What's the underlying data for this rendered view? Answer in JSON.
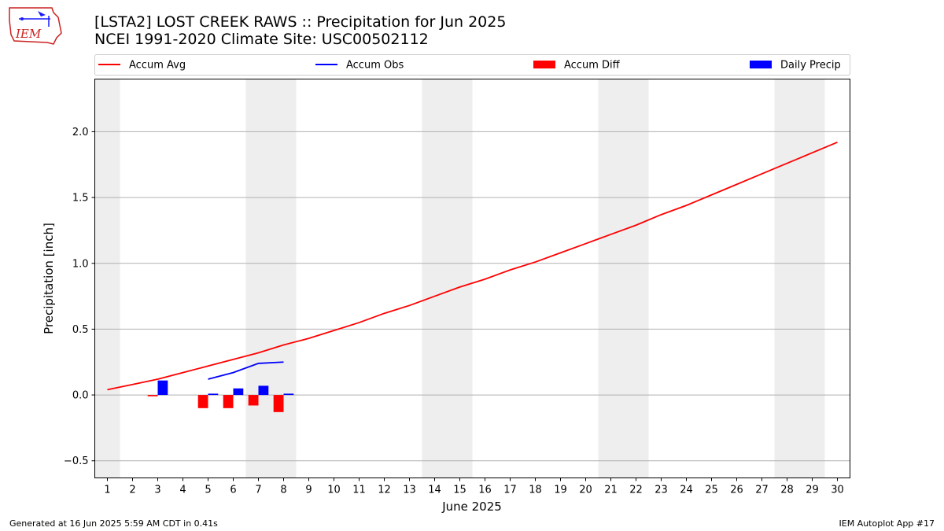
{
  "logo": {
    "text": "IEM"
  },
  "header": {
    "title_line1": "[LSTA2] LOST CREEK RAWS :: Precipitation for Jun 2025",
    "title_line2": "NCEI 1991-2020 Climate Site: USC00502112"
  },
  "footer": {
    "generated": "Generated at 16 Jun 2025 5:59 AM CDT in 0.41s",
    "app": "IEM Autoplot App #17"
  },
  "chart_data": {
    "type": "bar",
    "xlabel": "June 2025",
    "ylabel": "Precipitation [inch]",
    "xlim": [
      0.5,
      30.5
    ],
    "ylim": [
      -0.63,
      2.4
    ],
    "yticks": [
      -0.5,
      0.0,
      0.5,
      1.0,
      1.5,
      2.0
    ],
    "ytick_labels": [
      "−0.5",
      "0.0",
      "0.5",
      "1.0",
      "1.5",
      "2.0"
    ],
    "days": [
      1,
      2,
      3,
      4,
      5,
      6,
      7,
      8,
      9,
      10,
      11,
      12,
      13,
      14,
      15,
      16,
      17,
      18,
      19,
      20,
      21,
      22,
      23,
      24,
      25,
      26,
      27,
      28,
      29,
      30
    ],
    "weekend_days": [
      1,
      7,
      8,
      14,
      15,
      21,
      22,
      28,
      29
    ],
    "grid": "horizontal",
    "legend_position": "top",
    "colors": {
      "avg": "#ff0000",
      "obs": "#0000ff",
      "diff": "#ff0000",
      "daily": "#0000ff",
      "weekend": "#eeeeee",
      "grid": "#b0b0b0"
    },
    "legend": [
      {
        "label": "Accum Avg",
        "kind": "line",
        "color": "#ff0000"
      },
      {
        "label": "Accum Obs",
        "kind": "line",
        "color": "#0000ff"
      },
      {
        "label": "Accum Diff",
        "kind": "bar",
        "color": "#ff0000"
      },
      {
        "label": "Daily Precip",
        "kind": "bar",
        "color": "#0000ff"
      }
    ],
    "series": [
      {
        "name": "Accum Avg",
        "type": "line",
        "x": [
          1,
          2,
          3,
          4,
          5,
          6,
          7,
          8,
          9,
          10,
          11,
          12,
          13,
          14,
          15,
          16,
          17,
          18,
          19,
          20,
          21,
          22,
          23,
          24,
          25,
          26,
          27,
          28,
          29,
          30
        ],
        "values": [
          0.04,
          0.08,
          0.12,
          0.17,
          0.22,
          0.27,
          0.32,
          0.38,
          0.43,
          0.49,
          0.55,
          0.62,
          0.68,
          0.75,
          0.82,
          0.88,
          0.95,
          1.01,
          1.08,
          1.15,
          1.22,
          1.29,
          1.37,
          1.44,
          1.52,
          1.6,
          1.68,
          1.76,
          1.84,
          1.92
        ]
      },
      {
        "name": "Accum Obs",
        "type": "line",
        "x": [
          5,
          6,
          7,
          8
        ],
        "values": [
          0.12,
          0.17,
          0.24,
          0.25
        ]
      },
      {
        "name": "Accum Diff",
        "type": "bar",
        "x": [
          3,
          5,
          6,
          7,
          8
        ],
        "values": [
          -0.01,
          -0.1,
          -0.1,
          -0.08,
          -0.13
        ]
      },
      {
        "name": "Daily Precip",
        "type": "bar",
        "x": [
          3,
          5,
          6,
          7,
          8
        ],
        "values": [
          0.11,
          0.01,
          0.05,
          0.07,
          0.01
        ]
      }
    ]
  }
}
